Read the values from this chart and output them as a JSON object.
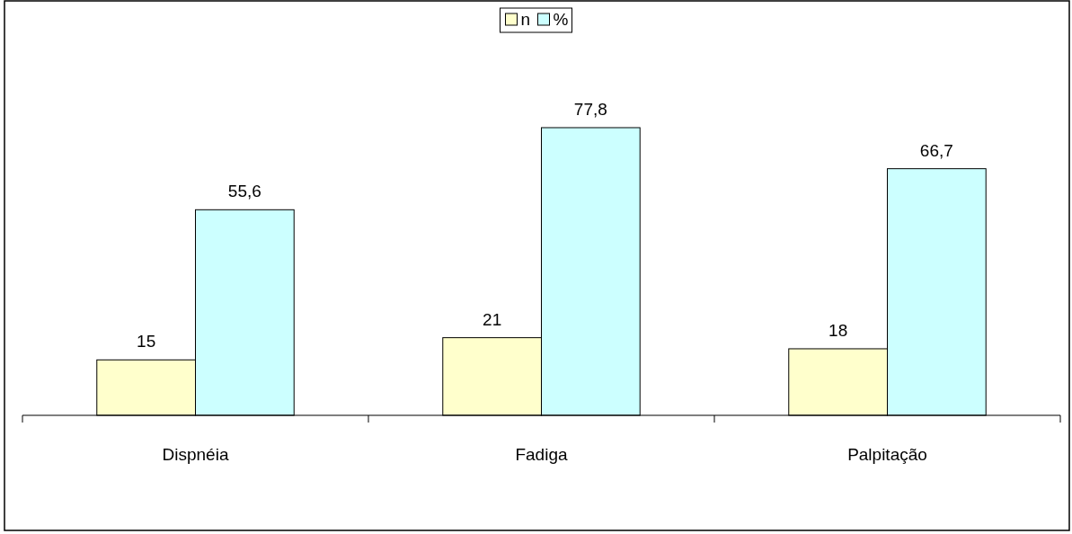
{
  "chart_data": {
    "type": "bar",
    "categories": [
      "Dispnéia",
      "Fadiga",
      "Palpitação"
    ],
    "series": [
      {
        "name": "n",
        "color": "#ffffcc",
        "values": [
          15,
          21,
          18
        ],
        "value_labels": [
          "15",
          "21",
          "18"
        ]
      },
      {
        "name": "%",
        "color": "#ccffff",
        "values": [
          55.6,
          77.8,
          66.7
        ],
        "value_labels": [
          "55,6",
          "77,8",
          "66,7"
        ]
      }
    ],
    "tick_labels": "x",
    "legend": "top"
  }
}
